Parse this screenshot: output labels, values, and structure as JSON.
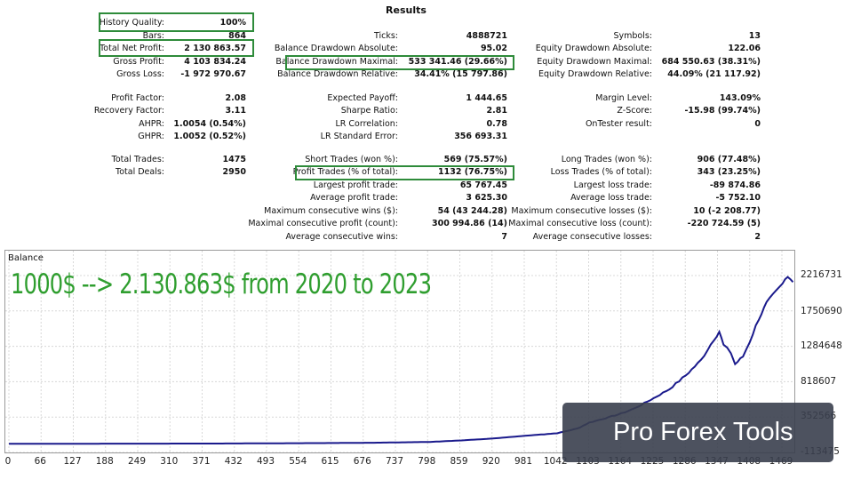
{
  "title": "Results",
  "col1_a": [
    {
      "label": "History Quality:",
      "value": "100%"
    },
    {
      "label": "Bars:",
      "value": "864"
    },
    {
      "label": "Total Net Profit:",
      "value": "2 130 863.57"
    },
    {
      "label": "Gross Profit:",
      "value": "4 103 834.24"
    },
    {
      "label": "Gross Loss:",
      "value": "-1 972 970.67"
    }
  ],
  "col2_a": [
    {
      "label": "Ticks:",
      "value": "4888721"
    },
    {
      "label": "Balance Drawdown Absolute:",
      "value": "95.02"
    },
    {
      "label": "Balance Drawdown Maximal:",
      "value": "533 341.46 (29.66%)"
    },
    {
      "label": "Balance Drawdown Relative:",
      "value": "34.41% (15 797.86)"
    }
  ],
  "col3_a": [
    {
      "label": "Symbols:",
      "value": "13"
    },
    {
      "label": "Equity Drawdown Absolute:",
      "value": "122.06"
    },
    {
      "label": "Equity Drawdown Maximal:",
      "value": "684 550.63 (38.31%)"
    },
    {
      "label": "Equity Drawdown Relative:",
      "value": "44.09% (21 117.92)"
    }
  ],
  "col1_b": [
    {
      "label": "Profit Factor:",
      "value": "2.08"
    },
    {
      "label": "Recovery Factor:",
      "value": "3.11"
    },
    {
      "label": "AHPR:",
      "value": "1.0054 (0.54%)"
    },
    {
      "label": "GHPR:",
      "value": "1.0052 (0.52%)"
    }
  ],
  "col2_b": [
    {
      "label": "Expected Payoff:",
      "value": "1 444.65"
    },
    {
      "label": "Sharpe Ratio:",
      "value": "2.81"
    },
    {
      "label": "LR Correlation:",
      "value": "0.78"
    },
    {
      "label": "LR Standard Error:",
      "value": "356 693.31"
    }
  ],
  "col3_b": [
    {
      "label": "Margin Level:",
      "value": "143.09%"
    },
    {
      "label": "Z-Score:",
      "value": "-15.98 (99.74%)"
    },
    {
      "label": "OnTester result:",
      "value": "0"
    }
  ],
  "col1_c": [
    {
      "label": "Total Trades:",
      "value": "1475"
    },
    {
      "label": "Total Deals:",
      "value": "2950"
    }
  ],
  "col2_c": [
    {
      "label": "Short Trades (won %):",
      "value": "569 (75.57%)"
    },
    {
      "label": "Profit Trades (% of total):",
      "value": "1132 (76.75%)"
    },
    {
      "label": "Largest profit trade:",
      "value": "65 767.45"
    },
    {
      "label": "Average profit trade:",
      "value": "3 625.30"
    },
    {
      "label": "Maximum consecutive wins ($):",
      "value": "54 (43 244.28)"
    },
    {
      "label": "Maximal consecutive profit (count):",
      "value": "300 994.86 (14)"
    },
    {
      "label": "Average consecutive wins:",
      "value": "7"
    }
  ],
  "col3_c": [
    {
      "label": "Long Trades (won %):",
      "value": "906 (77.48%)"
    },
    {
      "label": "Loss Trades (% of total):",
      "value": "343 (23.25%)"
    },
    {
      "label": "Largest loss trade:",
      "value": "-89 874.86"
    },
    {
      "label": "Average loss trade:",
      "value": "-5 752.10"
    },
    {
      "label": "Maximum consecutive losses ($):",
      "value": "10 (-2 208.77)"
    },
    {
      "label": "Maximal consecutive loss (count):",
      "value": "-220 724.59 (5)"
    },
    {
      "label": "Average consecutive losses:",
      "value": "2"
    }
  ],
  "chart": {
    "label": "Balance",
    "annotation": "1000$ --> 2.130.863$ from 2020 to 2023",
    "line_color": "#1a1a8c",
    "grid_color": "#d8d8d8",
    "highlight_color": "#2e8b3a",
    "y_ticks": [
      "2216731",
      "1750690",
      "1284648",
      "818607",
      "352566",
      "-113475"
    ],
    "x_ticks": [
      "0",
      "66",
      "127",
      "188",
      "249",
      "310",
      "371",
      "432",
      "493",
      "554",
      "615",
      "676",
      "737",
      "798",
      "859",
      "920",
      "981",
      "1042",
      "1103",
      "1164",
      "1225",
      "1286",
      "1347",
      "1408",
      "1469"
    ],
    "balance_points": [
      [
        0,
        1000
      ],
      [
        200,
        2000
      ],
      [
        400,
        4000
      ],
      [
        600,
        10000
      ],
      [
        700,
        15000
      ],
      [
        800,
        25000
      ],
      [
        860,
        45000
      ],
      [
        920,
        70000
      ],
      [
        980,
        105000
      ],
      [
        1042,
        140000
      ],
      [
        1080,
        200000
      ],
      [
        1103,
        280000
      ],
      [
        1140,
        350000
      ],
      [
        1164,
        400000
      ],
      [
        1190,
        470000
      ],
      [
        1225,
        600000
      ],
      [
        1255,
        720000
      ],
      [
        1286,
        900000
      ],
      [
        1315,
        1100000
      ],
      [
        1340,
        1380000
      ],
      [
        1350,
        1480000
      ],
      [
        1358,
        1300000
      ],
      [
        1372,
        1200000
      ],
      [
        1380,
        1050000
      ],
      [
        1395,
        1150000
      ],
      [
        1408,
        1350000
      ],
      [
        1425,
        1650000
      ],
      [
        1440,
        1850000
      ],
      [
        1458,
        2000000
      ],
      [
        1470,
        2100000
      ],
      [
        1480,
        2230000
      ],
      [
        1490,
        2130863
      ]
    ]
  },
  "watermark": "Pro Forex Tools"
}
